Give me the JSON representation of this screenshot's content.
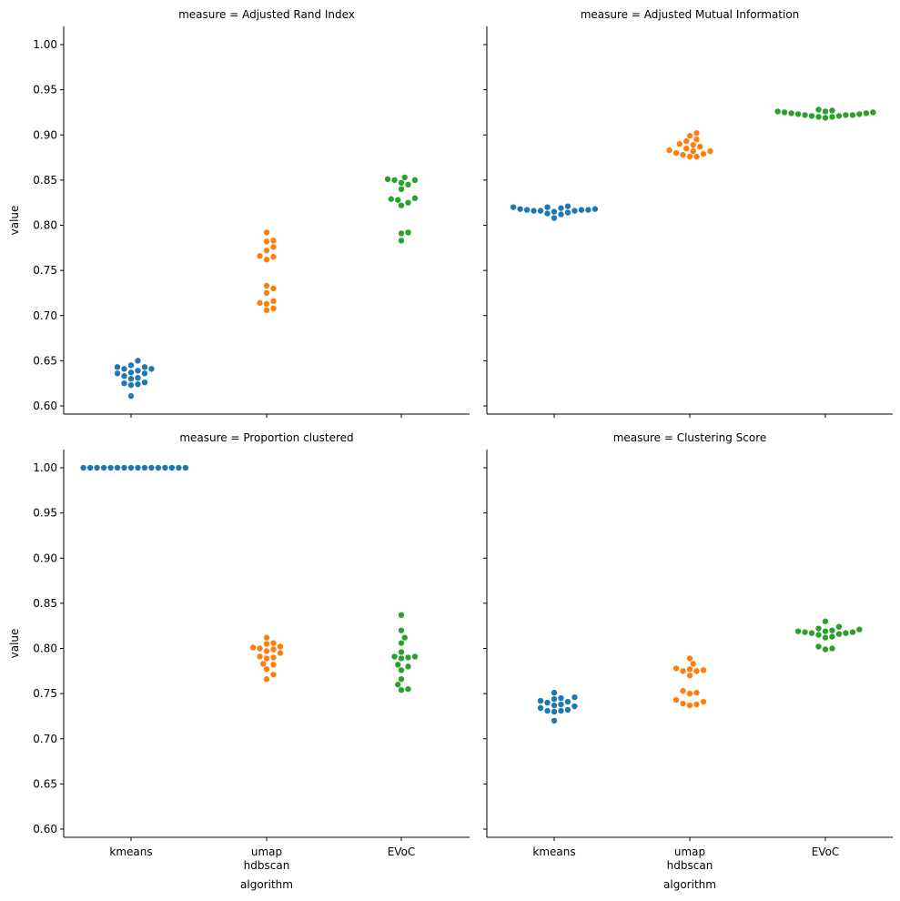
{
  "colors": {
    "kmeans": "#1f77b4",
    "umap hdbscan": "#ff7f0e",
    "EVoC": "#2ca02c"
  },
  "chart_data": {
    "type": "scatter",
    "style": "swarm",
    "x_label": "algorithm",
    "y_label": "value",
    "categories": [
      [
        "kmeans"
      ],
      [
        "umap",
        "hdbscan"
      ],
      [
        "EVoC"
      ]
    ],
    "ylim": [
      0.59,
      1.02
    ],
    "yticks": [
      "0.60",
      "0.65",
      "0.70",
      "0.75",
      "0.80",
      "0.85",
      "0.90",
      "0.95",
      "1.00"
    ],
    "grid": false,
    "panels": [
      {
        "title": "measure = Adjusted Rand Index",
        "series": [
          {
            "category": "kmeans",
            "values": [
              0.65,
              0.645,
              0.643,
              0.643,
              0.641,
              0.641,
              0.639,
              0.637,
              0.636,
              0.636,
              0.633,
              0.631,
              0.63,
              0.626,
              0.625,
              0.624,
              0.623,
              0.611
            ]
          },
          {
            "category": "umap hdbscan",
            "values": [
              0.792,
              0.783,
              0.782,
              0.776,
              0.772,
              0.766,
              0.765,
              0.762,
              0.733,
              0.73,
              0.725,
              0.716,
              0.714,
              0.713,
              0.708,
              0.706
            ]
          },
          {
            "category": "EVoC",
            "values": [
              0.853,
              0.851,
              0.85,
              0.85,
              0.847,
              0.845,
              0.84,
              0.83,
              0.829,
              0.828,
              0.825,
              0.822,
              0.792,
              0.791,
              0.783
            ]
          }
        ]
      },
      {
        "title": "measure = Adjusted Mutual Information",
        "series": [
          {
            "category": "kmeans",
            "values": [
              0.821,
              0.82,
              0.82,
              0.819,
              0.818,
              0.818,
              0.817,
              0.817,
              0.817,
              0.816,
              0.816,
              0.816,
              0.815,
              0.814,
              0.813,
              0.812,
              0.808
            ]
          },
          {
            "category": "umap hdbscan",
            "values": [
              0.902,
              0.899,
              0.895,
              0.893,
              0.89,
              0.889,
              0.887,
              0.885,
              0.883,
              0.882,
              0.882,
              0.88,
              0.879,
              0.878,
              0.876,
              0.876
            ]
          },
          {
            "category": "EVoC",
            "values": [
              0.928,
              0.927,
              0.926,
              0.926,
              0.925,
              0.925,
              0.924,
              0.924,
              0.923,
              0.923,
              0.922,
              0.922,
              0.922,
              0.921,
              0.921,
              0.92,
              0.92,
              0.919
            ]
          }
        ]
      },
      {
        "title": "measure = Proportion clustered",
        "series": [
          {
            "category": "kmeans",
            "values": [
              1.0,
              1.0,
              1.0,
              1.0,
              1.0,
              1.0,
              1.0,
              1.0,
              1.0,
              1.0,
              1.0,
              1.0,
              1.0,
              1.0,
              1.0,
              1.0
            ]
          },
          {
            "category": "umap hdbscan",
            "values": [
              0.812,
              0.806,
              0.805,
              0.802,
              0.801,
              0.8,
              0.799,
              0.797,
              0.795,
              0.791,
              0.79,
              0.789,
              0.783,
              0.782,
              0.777,
              0.771,
              0.766
            ]
          },
          {
            "category": "EVoC",
            "values": [
              0.837,
              0.82,
              0.812,
              0.806,
              0.796,
              0.791,
              0.791,
              0.79,
              0.789,
              0.782,
              0.78,
              0.776,
              0.766,
              0.76,
              0.755,
              0.754
            ]
          }
        ]
      },
      {
        "title": "measure = Clustering Score",
        "series": [
          {
            "category": "kmeans",
            "values": [
              0.751,
              0.746,
              0.745,
              0.744,
              0.742,
              0.741,
              0.74,
              0.738,
              0.737,
              0.736,
              0.734,
              0.732,
              0.731,
              0.731,
              0.73,
              0.72
            ]
          },
          {
            "category": "umap hdbscan",
            "values": [
              0.789,
              0.783,
              0.778,
              0.777,
              0.776,
              0.775,
              0.775,
              0.77,
              0.753,
              0.751,
              0.75,
              0.743,
              0.741,
              0.739,
              0.738,
              0.737
            ]
          },
          {
            "category": "EVoC",
            "values": [
              0.83,
              0.824,
              0.822,
              0.821,
              0.82,
              0.819,
              0.819,
              0.818,
              0.818,
              0.817,
              0.817,
              0.816,
              0.815,
              0.813,
              0.812,
              0.802,
              0.8,
              0.799
            ]
          }
        ]
      }
    ]
  }
}
